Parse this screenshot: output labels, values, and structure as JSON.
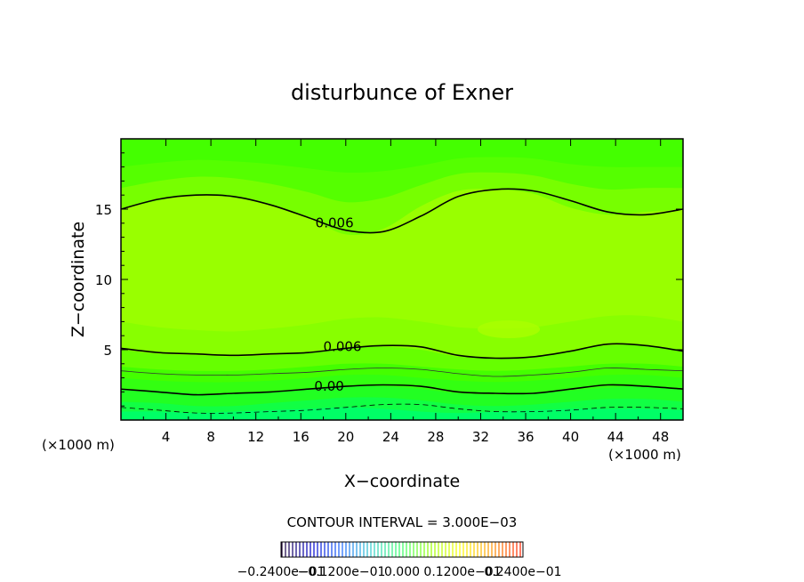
{
  "chart_data": {
    "type": "heatmap",
    "title": "disturbunce of Exner",
    "xlabel": "X−coordinate",
    "ylabel": "Z−coordinate",
    "x_unit": "(×1000 m)",
    "z_unit": "(×1000 m)",
    "xlim": [
      0,
      50
    ],
    "ylim": [
      0,
      20
    ],
    "x_ticks": [
      {
        "value": 4,
        "label": "4"
      },
      {
        "value": 8,
        "label": "8"
      },
      {
        "value": 12,
        "label": "12"
      },
      {
        "value": 16,
        "label": "16"
      },
      {
        "value": 20,
        "label": "20"
      },
      {
        "value": 24,
        "label": "24"
      },
      {
        "value": 28,
        "label": "28"
      },
      {
        "value": 32,
        "label": "32"
      },
      {
        "value": 36,
        "label": "36"
      },
      {
        "value": 40,
        "label": "40"
      },
      {
        "value": 44,
        "label": "44"
      },
      {
        "value": 48,
        "label": "48"
      }
    ],
    "y_ticks": [
      {
        "value": 5,
        "label": "5"
      },
      {
        "value": 10,
        "label": "10"
      },
      {
        "value": 15,
        "label": "15"
      }
    ],
    "contour_interval_text": "CONTOUR INTERVAL = 3.000E−03",
    "colorbar": {
      "min": -0.024,
      "max": 0.024,
      "labels": [
        "−0.2400e−01",
        "−0.1200e−01",
        "0.000",
        "0.1200e−01",
        "0.2400e−01"
      ],
      "colors": [
        "#1a0033",
        "#0000cc",
        "#1a66ff",
        "#33cccc",
        "#33ff66",
        "#99ff00",
        "#ffff00",
        "#ff9900",
        "#ff2200"
      ]
    },
    "fill_bands": [
      {
        "color": "#00ff66",
        "z": [
          0.6,
          0.6,
          0.5,
          0.6,
          0.7,
          0.8,
          0.9,
          0.8,
          0.6,
          0.5,
          0.6,
          0.7,
          0.8,
          0.8,
          0.8,
          0.7
        ]
      },
      {
        "color": "#11ff44",
        "z": [
          1.3,
          1.2,
          1.0,
          1.0,
          1.2,
          1.4,
          1.6,
          1.6,
          1.4,
          1.1,
          1.0,
          1.1,
          1.3,
          1.5,
          1.5,
          1.3
        ]
      },
      {
        "color": "#22ff22",
        "z": [
          2.2,
          2.1,
          1.9,
          1.9,
          2.0,
          2.2,
          2.4,
          2.4,
          2.2,
          1.9,
          1.8,
          1.9,
          2.1,
          2.3,
          2.4,
          2.2
        ]
      },
      {
        "color": "#33ff11",
        "z": [
          3.0,
          2.8,
          2.7,
          2.7,
          2.8,
          3.0,
          3.2,
          3.2,
          3.0,
          2.8,
          2.7,
          2.8,
          3.0,
          3.2,
          3.2,
          3.0
        ]
      },
      {
        "color": "#44ff00",
        "z": [
          3.8,
          3.6,
          3.5,
          3.5,
          3.6,
          3.8,
          4.0,
          4.0,
          3.8,
          3.6,
          3.5,
          3.6,
          3.8,
          4.0,
          4.0,
          3.8
        ]
      },
      {
        "color": "#66ff00",
        "z": [
          5.0,
          4.7,
          4.6,
          4.5,
          4.6,
          4.8,
          5.1,
          5.2,
          5.0,
          4.5,
          4.4,
          4.5,
          4.9,
          5.3,
          5.3,
          5.0
        ]
      },
      {
        "color": "#88ff00",
        "z": [
          7.0,
          6.6,
          6.4,
          6.3,
          6.5,
          6.8,
          7.2,
          7.3,
          7.0,
          6.6,
          6.5,
          6.6,
          7.0,
          7.4,
          7.4,
          7.0
        ]
      },
      {
        "color": "#99ff00",
        "z": [
          15.0,
          15.6,
          16.0,
          15.8,
          15.3,
          14.4,
          13.2,
          13.6,
          15.2,
          16.3,
          16.4,
          16.1,
          15.1,
          14.6,
          14.8,
          15.0
        ]
      },
      {
        "color": "#77ff00",
        "z": [
          16.5,
          17.0,
          17.3,
          17.2,
          16.8,
          16.2,
          15.5,
          15.8,
          16.7,
          17.5,
          17.6,
          17.4,
          16.8,
          16.4,
          16.5,
          16.5
        ]
      },
      {
        "color": "#55ff00",
        "z": [
          18.0,
          18.3,
          18.5,
          18.4,
          18.2,
          17.9,
          17.6,
          17.7,
          18.1,
          18.6,
          18.7,
          18.6,
          18.2,
          18.0,
          18.0,
          18.0
        ]
      },
      {
        "color": "#44ff00",
        "z": [
          20.0,
          20.0,
          20.0,
          20.0,
          20.0,
          20.0,
          20.0,
          20.0,
          20.0,
          20.0,
          20.0,
          20.0,
          20.0,
          20.0,
          20.0,
          20.0
        ]
      }
    ],
    "fill_x": [
      0,
      3.33,
      6.67,
      10,
      13.33,
      16.67,
      20,
      23.33,
      26.67,
      30,
      33.33,
      36.67,
      40,
      43.33,
      46.67,
      50
    ],
    "contour_x": [
      0,
      3.33,
      6.67,
      10,
      13.33,
      16.67,
      20,
      23.33,
      26.67,
      30,
      33.33,
      36.67,
      40,
      43.33,
      46.67,
      50
    ],
    "contours": [
      {
        "value": 0.006,
        "style": "solid",
        "width": 1.6,
        "color": "#000000",
        "z": [
          15.0,
          15.7,
          16.0,
          15.9,
          15.3,
          14.4,
          13.5,
          13.4,
          14.5,
          15.9,
          16.4,
          16.3,
          15.6,
          14.8,
          14.6,
          15.0
        ],
        "label": "0.006",
        "label_x": 17.3,
        "label_z": 13.7
      },
      {
        "value": 0.006,
        "style": "solid",
        "width": 1.6,
        "color": "#000000",
        "z": [
          5.1,
          4.8,
          4.7,
          4.6,
          4.7,
          4.8,
          5.1,
          5.3,
          5.2,
          4.6,
          4.4,
          4.5,
          4.9,
          5.4,
          5.3,
          4.9
        ],
        "label": "0.006",
        "label_x": 18.0,
        "label_z": 4.9
      },
      {
        "value": 0.003,
        "style": "solid",
        "width": 0.8,
        "color": "#333333",
        "z": [
          3.5,
          3.3,
          3.2,
          3.2,
          3.3,
          3.4,
          3.6,
          3.7,
          3.6,
          3.3,
          3.1,
          3.2,
          3.4,
          3.7,
          3.6,
          3.5
        ],
        "label": "",
        "label_x": 0,
        "label_z": 0
      },
      {
        "value": 0.0,
        "style": "solid",
        "width": 1.6,
        "color": "#000000",
        "z": [
          2.2,
          2.0,
          1.8,
          1.9,
          2.0,
          2.2,
          2.4,
          2.5,
          2.4,
          2.0,
          1.9,
          1.9,
          2.2,
          2.5,
          2.4,
          2.2
        ],
        "label": "0.00",
        "label_x": 17.2,
        "label_z": 2.1
      },
      {
        "value": -0.003,
        "style": "dashed",
        "width": 0.8,
        "color": "#000000",
        "z": [
          0.9,
          0.7,
          0.5,
          0.5,
          0.6,
          0.7,
          0.9,
          1.1,
          1.1,
          0.8,
          0.6,
          0.6,
          0.7,
          0.9,
          0.9,
          0.8
        ],
        "label": "",
        "label_x": 0,
        "label_z": 0
      }
    ],
    "grid": false,
    "legend": "colorbar-bottom"
  }
}
